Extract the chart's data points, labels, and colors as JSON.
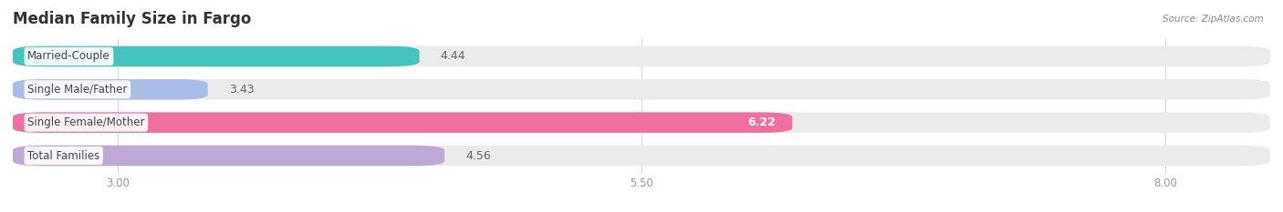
{
  "title": "Median Family Size in Fargo",
  "source": "Source: ZipAtlas.com",
  "categories": [
    "Married-Couple",
    "Single Male/Father",
    "Single Female/Mother",
    "Total Families"
  ],
  "values": [
    4.44,
    3.43,
    6.22,
    4.56
  ],
  "bar_colors": [
    "#45C4BF",
    "#A8BDE8",
    "#F06EA0",
    "#C0A8D5"
  ],
  "background_color": "#ffffff",
  "bar_bg_color": "#ebebeb",
  "xmin": 2.5,
  "xmax": 8.5,
  "xticks": [
    3.0,
    5.5,
    8.0
  ],
  "bar_height": 0.62,
  "label_fontsize": 8.5,
  "value_fontsize": 9,
  "title_fontsize": 12
}
